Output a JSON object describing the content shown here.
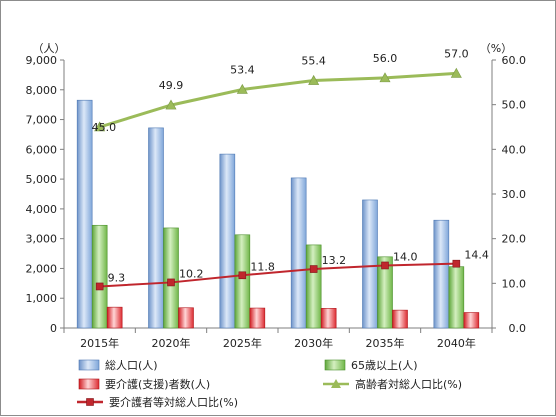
{
  "chart_data": {
    "type": "bar",
    "categories": [
      "2015年",
      "2020年",
      "2025年",
      "2030年",
      "2035年",
      "2040年"
    ],
    "left_axis": {
      "unit_label": "（人）",
      "range": [
        0,
        9000
      ],
      "ticks": [
        "0",
        "1,000",
        "2,000",
        "3,000",
        "4,000",
        "5,000",
        "6,000",
        "7,000",
        "8,000",
        "9,000"
      ],
      "tick_values": [
        0,
        1000,
        2000,
        3000,
        4000,
        5000,
        6000,
        7000,
        8000,
        9000
      ]
    },
    "right_axis": {
      "unit_label": "（%）",
      "range": [
        0,
        60
      ],
      "ticks": [
        "0.0",
        "10.0",
        "20.0",
        "30.0",
        "40.0",
        "50.0",
        "60.0"
      ],
      "tick_values": [
        0,
        10,
        20,
        30,
        40,
        50,
        60
      ]
    },
    "bar_series": [
      {
        "name": "総人口(人)",
        "color": "#8eb4e3",
        "axis": "left",
        "values": [
          7650,
          6720,
          5840,
          5040,
          4300,
          3620
        ]
      },
      {
        "name": "65歳以上(人)",
        "color": "#8fce65",
        "axis": "left",
        "values": [
          3450,
          3360,
          3130,
          2790,
          2390,
          2060
        ]
      },
      {
        "name": "要介護(支援)者数(人)",
        "color": "#e8242a",
        "axis": "left",
        "values": [
          700,
          680,
          670,
          660,
          600,
          520
        ]
      }
    ],
    "line_series": [
      {
        "name": "高齢者対総人口比(%)",
        "color": "#9bbb59",
        "marker": "triangle",
        "axis": "right",
        "values": [
          45.0,
          49.9,
          53.4,
          55.4,
          56.0,
          57.0
        ],
        "labels": [
          "45.0",
          "49.9",
          "53.4",
          "55.4",
          "56.0",
          "57.0"
        ]
      },
      {
        "name": "要介護者等対総人口比(%)",
        "color": "#c0262d",
        "marker": "square",
        "axis": "right",
        "values": [
          9.3,
          10.2,
          11.8,
          13.2,
          14.0,
          14.4
        ],
        "labels": [
          "9.3",
          "10.2",
          "11.8",
          "13.2",
          "14.0",
          "14.4"
        ]
      }
    ],
    "legend_position": "bottom",
    "grid": false
  }
}
